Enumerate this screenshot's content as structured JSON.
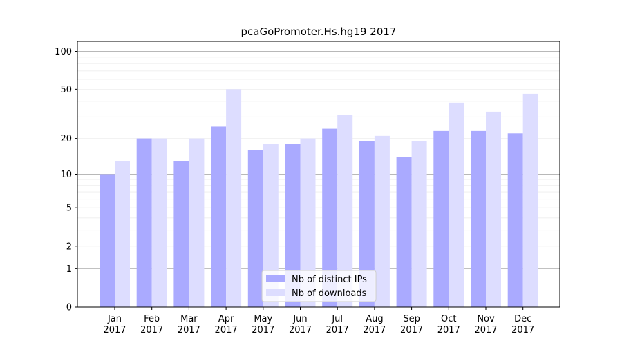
{
  "chart_data": {
    "type": "bar",
    "title": "pcaGoPromoter.Hs.hg19 2017",
    "xlabel": "",
    "ylabel": "",
    "y_scale": "log(1+y)",
    "ylim": [
      0,
      120
    ],
    "yticks": [
      0,
      1,
      2,
      5,
      10,
      20,
      50,
      100
    ],
    "ytick_labels": [
      "0",
      "1",
      "2",
      "5",
      "10",
      "20",
      "50",
      "100"
    ],
    "categories": [
      "Jan\n2017",
      "Feb\n2017",
      "Mar\n2017",
      "Apr\n2017",
      "May\n2017",
      "Jun\n2017",
      "Jul\n2017",
      "Aug\n2017",
      "Sep\n2017",
      "Oct\n2017",
      "Nov\n2017",
      "Dec\n2017"
    ],
    "series": [
      {
        "name": "Nb of distinct IPs",
        "color": "#aaaaff",
        "values": [
          10,
          20,
          13,
          25,
          16,
          18,
          24,
          19,
          14,
          23,
          23,
          22
        ]
      },
      {
        "name": "Nb of downloads",
        "color": "#ddddff",
        "values": [
          13,
          20,
          20,
          50,
          18,
          20,
          31,
          21,
          19,
          39,
          33,
          46
        ]
      }
    ],
    "legend_position": "bottom-center",
    "grid": true
  }
}
